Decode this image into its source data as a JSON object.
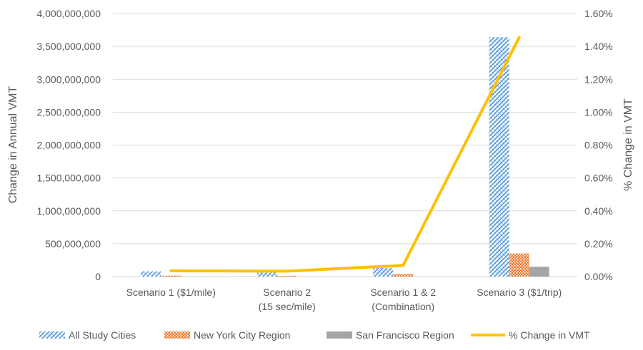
{
  "chart_data": {
    "type": "bar",
    "categories": [
      [
        "Scenario 1 ($1/mile)"
      ],
      [
        "Scenario 2",
        "(15 sec/mile)"
      ],
      [
        "Scenario 1 & 2",
        "(Combination)"
      ],
      [
        "Scenario 3 ($1/trip)"
      ]
    ],
    "series": [
      {
        "name": "All Study Cities",
        "type": "bar",
        "axis": "left",
        "color": "#5B9BD5",
        "pattern": "diagonal-checker",
        "values": [
          80000000,
          60000000,
          130000000,
          3640000000
        ]
      },
      {
        "name": "New York City Region",
        "type": "bar",
        "axis": "left",
        "color": "#ED7D31",
        "pattern": "dotted-grid",
        "values": [
          15000000,
          12000000,
          40000000,
          350000000
        ]
      },
      {
        "name": "San Francisco Region",
        "type": "bar",
        "axis": "left",
        "color": "#A5A5A5",
        "pattern": "solid",
        "values": [
          0,
          0,
          0,
          150000000
        ]
      },
      {
        "name": "% Change in VMT",
        "type": "line",
        "axis": "right",
        "color": "#FFC000",
        "values": [
          0.035,
          0.033,
          0.068,
          1.455
        ]
      }
    ],
    "ylabel": "Change in Annual VMT",
    "y2label": "% Change in VMT",
    "ylim": [
      0,
      4000000000
    ],
    "y2lim": [
      0,
      1.6
    ],
    "yticks": [
      "0",
      "500,000,000",
      "1,000,000,000",
      "1,500,000,000",
      "2,000,000,000",
      "2,500,000,000",
      "3,000,000,000",
      "3,500,000,000",
      "4,000,000,000"
    ],
    "y2ticks": [
      "0.00%",
      "0.20%",
      "0.40%",
      "0.60%",
      "0.80%",
      "1.00%",
      "1.20%",
      "1.40%",
      "1.60%"
    ],
    "grid": true,
    "legend_position": "bottom"
  }
}
